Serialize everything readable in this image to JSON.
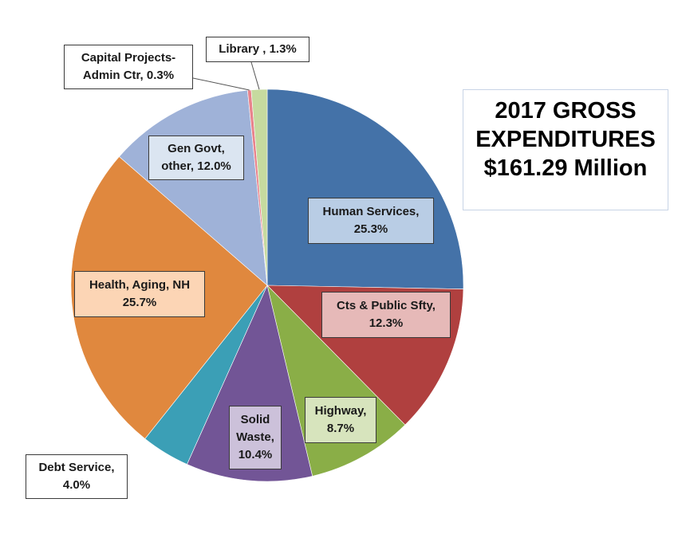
{
  "chart_data": {
    "type": "pie",
    "title": [
      "2017 GROSS",
      "EXPENDITURES",
      "$161.29 Million"
    ],
    "legend": "none",
    "slices": [
      {
        "name": "Human Services",
        "value": 25.3,
        "label": [
          "Human Services,",
          "25.3%"
        ],
        "color": "#4472a8"
      },
      {
        "name": "Cts & Public Sfty",
        "value": 12.3,
        "label": [
          "Cts & Public Sfty,",
          "12.3%"
        ],
        "color": "#b0403f"
      },
      {
        "name": "Highway",
        "value": 8.7,
        "label": [
          "Highway,",
          "8.7%"
        ],
        "color": "#8aae47"
      },
      {
        "name": "Solid Waste",
        "value": 10.4,
        "label": [
          "Solid",
          "Waste,",
          "10.4%"
        ],
        "color": "#725596"
      },
      {
        "name": "Debt Service",
        "value": 4.0,
        "label": [
          "Debt Service,",
          "4.0%"
        ],
        "color": "#3b9fb6"
      },
      {
        "name": "Health, Aging, NH",
        "value": 25.7,
        "label": [
          "Health, Aging, NH",
          "25.7%"
        ],
        "color": "#e0883e"
      },
      {
        "name": "Gen Govt, other",
        "value": 12.0,
        "label": [
          "Gen Govt,",
          "other, 12.0%"
        ],
        "color": "#9fb2d8"
      },
      {
        "name": "Capital Projects-Admin Ctr",
        "value": 0.3,
        "label": [
          "Capital Projects-",
          "Admin Ctr, 0.3%"
        ],
        "color": "#e8838c"
      },
      {
        "name": "Library",
        "value": 1.3,
        "label": [
          "Library , 1.3%"
        ],
        "color": "#c6da9f"
      }
    ]
  }
}
